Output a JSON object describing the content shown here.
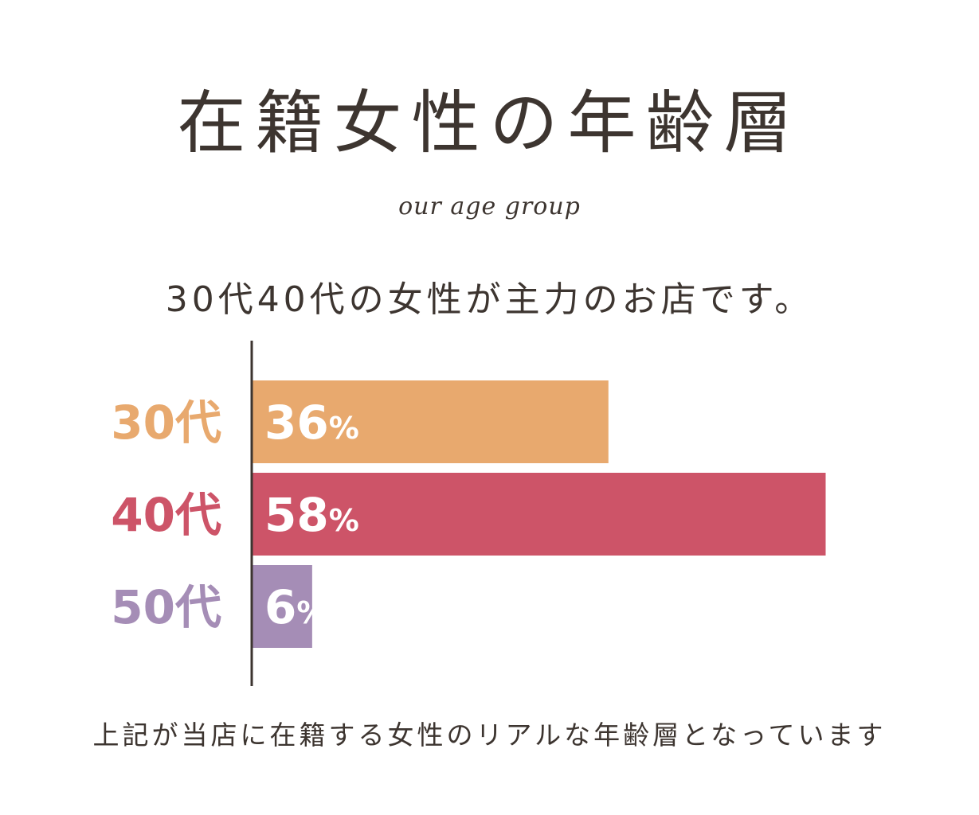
{
  "title": "在籍女性の年齢層",
  "subtitle": "our age group",
  "lead": "30代40代の女性が主力のお店です。",
  "footer": "上記が当店に在籍する女性のリアルな年齢層となっています",
  "colors": {
    "text": "#3d3530",
    "axis": "#3d3530",
    "bars": [
      "#e8a96e",
      "#cd5468",
      "#a58db6"
    ]
  },
  "chart_data": {
    "type": "bar",
    "orientation": "horizontal",
    "categories": [
      "30代",
      "40代",
      "50代"
    ],
    "values": [
      36,
      58,
      6
    ],
    "value_labels": [
      "36",
      "58",
      "6"
    ],
    "value_unit": "%",
    "xlim": [
      0,
      100
    ],
    "grid": false
  }
}
